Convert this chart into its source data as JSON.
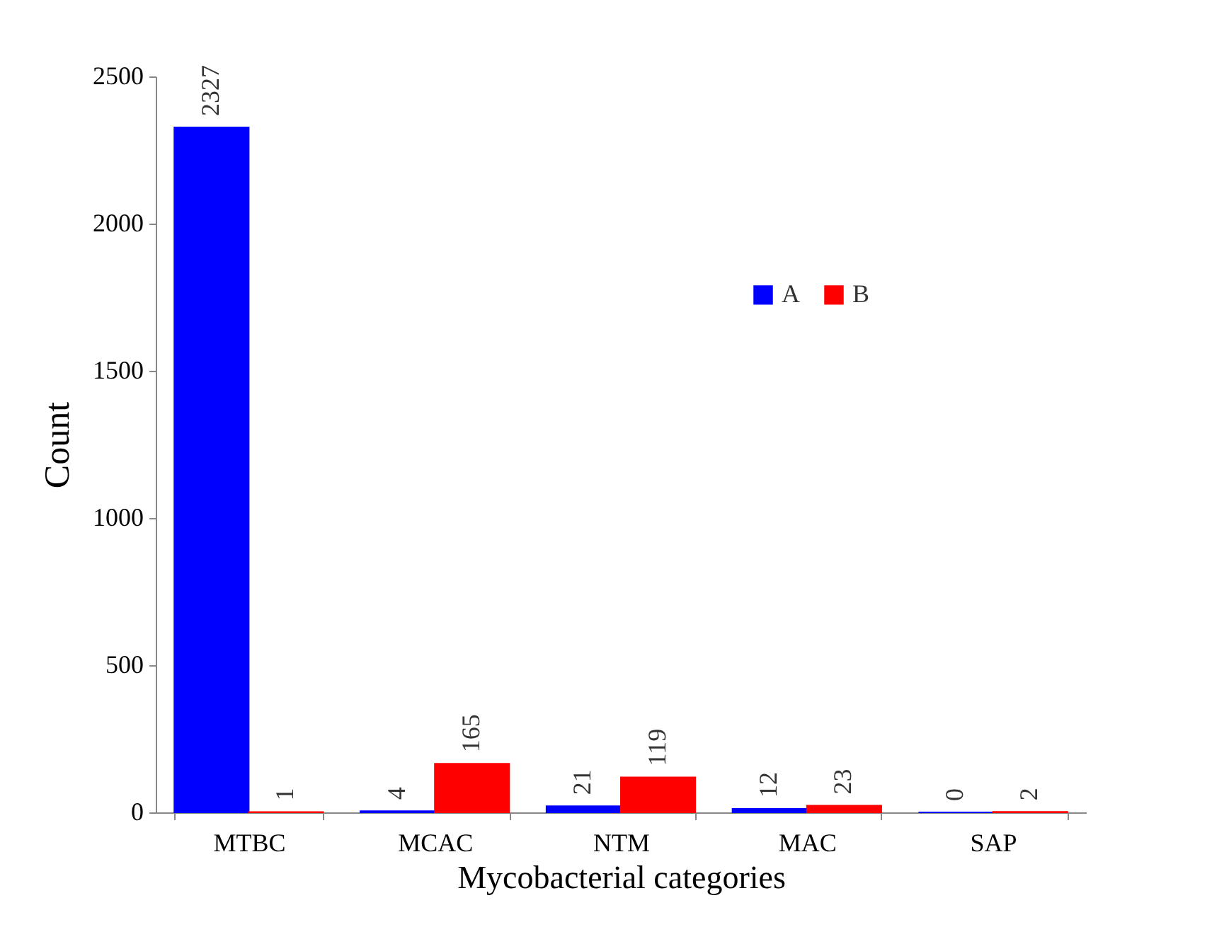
{
  "chart_data": {
    "type": "bar",
    "xlabel": "Mycobacterial categories",
    "ylabel": "Count",
    "categories": [
      "MTBC",
      "MCAC",
      "NTM",
      "MAC",
      "SAP"
    ],
    "series": [
      {
        "name": "A",
        "color": "#0000ff",
        "values": [
          2327,
          4,
          21,
          12,
          0
        ]
      },
      {
        "name": "B",
        "color": "#ff0000",
        "values": [
          1,
          165,
          119,
          23,
          2
        ]
      }
    ],
    "ylim": [
      0,
      2500
    ],
    "yticks": [
      0,
      500,
      1000,
      1500,
      2000,
      2500
    ],
    "data_labels": true,
    "grid": false,
    "legend": "right"
  }
}
